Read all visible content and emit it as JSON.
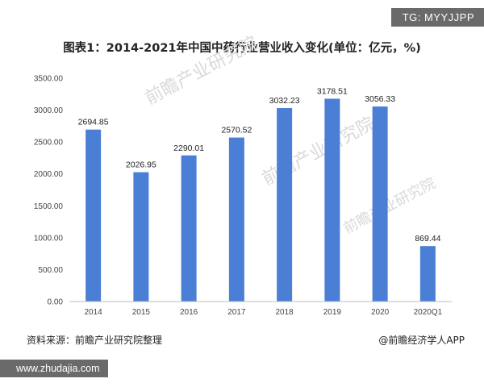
{
  "tag": "TG: MYYJJPP",
  "site": "www.zhudajia.com",
  "footer": {
    "source": "资料来源：前瞻产业研究院整理",
    "brand": "@前瞻经济学人APP"
  },
  "watermark": "前瞻产业研究院",
  "colors": {
    "bar": "#4a7fd5",
    "axis": "#bfbfbf"
  },
  "chart_data": {
    "type": "bar",
    "title": "图表1：2014-2021年中国中药行业营业收入变化(单位：亿元，%)",
    "categories": [
      "2014",
      "2015",
      "2016",
      "2017",
      "2018",
      "2019",
      "2020",
      "2020Q1"
    ],
    "values": [
      2694.85,
      2026.95,
      2290.01,
      2570.52,
      3032.23,
      3178.51,
      3056.33,
      869.44
    ],
    "ylim": [
      0,
      3500
    ],
    "yticks": [
      "0.00",
      "500.00",
      "1000.00",
      "1500.00",
      "2000.00",
      "2500.00",
      "3000.00",
      "3500.00"
    ],
    "grid": false,
    "legend": "none"
  }
}
